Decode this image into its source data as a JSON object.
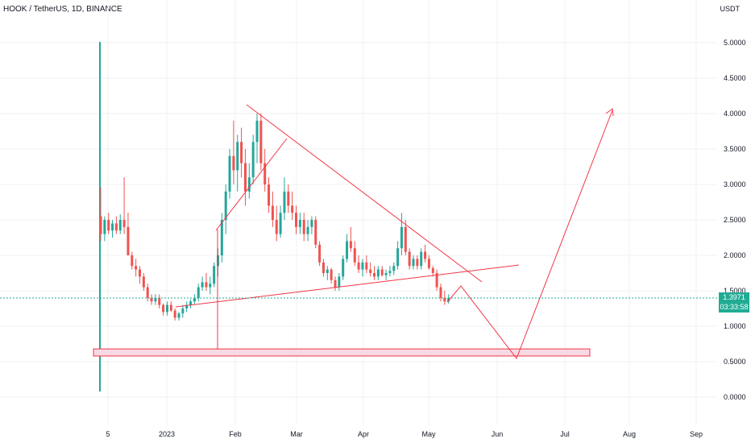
{
  "header": {
    "title": "HOOK / TetherUS, 1D, BINANCE",
    "unit": "USDT"
  },
  "price_tag": {
    "price": "1.3971",
    "countdown": "03:33:58"
  },
  "colors": {
    "up": "#26a69a",
    "down": "#ef5350",
    "drawing": "#f23645",
    "zone_fill": "#f7d9e4",
    "last_price_line": "#22ab94"
  },
  "chart_data": {
    "type": "candlestick",
    "y_axis": {
      "ticks": [
        "5.0000",
        "4.5000",
        "4.0000",
        "3.5000",
        "3.0000",
        "2.5000",
        "2.0000",
        "1.5000",
        "1.0000",
        "0.5000",
        "0.0000"
      ],
      "range": [
        0,
        5
      ]
    },
    "x_axis": {
      "ticks": [
        "5",
        "2023",
        "Feb",
        "Mar",
        "Apr",
        "May",
        "Jun",
        "Jul",
        "Aug",
        "Sep"
      ]
    },
    "grid": true,
    "last_price": 1.3971,
    "candles": [
      [
        2.55,
        2.96,
        2.2,
        2.3
      ],
      [
        2.3,
        2.55,
        2.2,
        2.5
      ],
      [
        2.5,
        2.6,
        2.3,
        2.35
      ],
      [
        2.35,
        2.5,
        2.25,
        2.45
      ],
      [
        2.45,
        2.55,
        2.3,
        2.35
      ],
      [
        2.35,
        2.58,
        2.3,
        2.5
      ],
      [
        2.5,
        3.1,
        2.3,
        2.4
      ],
      [
        2.4,
        2.6,
        2.0,
        2.0
      ],
      [
        2.0,
        2.05,
        1.8,
        1.85
      ],
      [
        1.85,
        1.95,
        1.7,
        1.8
      ],
      [
        1.8,
        1.85,
        1.6,
        1.7
      ],
      [
        1.7,
        1.75,
        1.5,
        1.55
      ],
      [
        1.55,
        1.6,
        1.35,
        1.4
      ],
      [
        1.4,
        1.45,
        1.3,
        1.35
      ],
      [
        1.35,
        1.45,
        1.3,
        1.4
      ],
      [
        1.4,
        1.45,
        1.25,
        1.3
      ],
      [
        1.3,
        1.32,
        1.15,
        1.2
      ],
      [
        1.2,
        1.35,
        1.15,
        1.3
      ],
      [
        1.3,
        1.35,
        1.2,
        1.22
      ],
      [
        1.22,
        1.25,
        1.08,
        1.12
      ],
      [
        1.12,
        1.2,
        1.08,
        1.18
      ],
      [
        1.18,
        1.3,
        1.12,
        1.25
      ],
      [
        1.25,
        1.35,
        1.2,
        1.3
      ],
      [
        1.3,
        1.38,
        1.25,
        1.35
      ],
      [
        1.35,
        1.45,
        1.3,
        1.4
      ],
      [
        1.4,
        1.6,
        1.35,
        1.55
      ],
      [
        1.55,
        1.7,
        1.5,
        1.62
      ],
      [
        1.62,
        1.75,
        1.5,
        1.55
      ],
      [
        1.55,
        1.7,
        1.45,
        1.6
      ],
      [
        1.6,
        1.9,
        1.55,
        1.85
      ],
      [
        1.85,
        2.1,
        1.7,
        2.0
      ],
      [
        2.0,
        2.6,
        1.9,
        2.5
      ],
      [
        2.5,
        3.0,
        2.3,
        2.9
      ],
      [
        2.9,
        3.5,
        2.8,
        3.4
      ],
      [
        3.4,
        3.9,
        3.0,
        3.2
      ],
      [
        3.2,
        3.7,
        2.9,
        3.6
      ],
      [
        3.6,
        3.8,
        3.1,
        3.3
      ],
      [
        3.3,
        3.5,
        2.7,
        2.9
      ],
      [
        2.9,
        3.3,
        2.8,
        3.1
      ],
      [
        3.1,
        3.7,
        3.0,
        3.6
      ],
      [
        3.6,
        4.0,
        3.3,
        3.9
      ],
      [
        3.9,
        4.0,
        3.2,
        3.3
      ],
      [
        3.3,
        3.5,
        2.9,
        3.0
      ],
      [
        3.0,
        3.1,
        2.6,
        2.7
      ],
      [
        2.7,
        2.9,
        2.4,
        2.5
      ],
      [
        2.5,
        2.7,
        2.2,
        2.3
      ],
      [
        2.3,
        2.7,
        2.25,
        2.6
      ],
      [
        2.6,
        3.1,
        2.5,
        2.9
      ],
      [
        2.9,
        3.0,
        2.6,
        2.7
      ],
      [
        2.7,
        2.9,
        2.5,
        2.6
      ],
      [
        2.6,
        2.7,
        2.3,
        2.4
      ],
      [
        2.4,
        2.6,
        2.3,
        2.5
      ],
      [
        2.5,
        2.6,
        2.2,
        2.3
      ],
      [
        2.3,
        2.5,
        2.2,
        2.4
      ],
      [
        2.4,
        2.55,
        2.3,
        2.5
      ],
      [
        2.5,
        2.55,
        2.1,
        2.15
      ],
      [
        2.15,
        2.2,
        1.85,
        1.9
      ],
      [
        1.9,
        1.95,
        1.7,
        1.75
      ],
      [
        1.75,
        1.85,
        1.65,
        1.8
      ],
      [
        1.8,
        1.82,
        1.6,
        1.65
      ],
      [
        1.65,
        1.7,
        1.5,
        1.55
      ],
      [
        1.55,
        1.75,
        1.5,
        1.7
      ],
      [
        1.7,
        2.0,
        1.65,
        1.95
      ],
      [
        1.95,
        2.3,
        1.9,
        2.2
      ],
      [
        2.2,
        2.4,
        2.05,
        2.1
      ],
      [
        2.1,
        2.2,
        1.85,
        1.9
      ],
      [
        1.9,
        2.0,
        1.75,
        1.8
      ],
      [
        1.8,
        1.95,
        1.7,
        1.9
      ],
      [
        1.9,
        2.0,
        1.75,
        1.8
      ],
      [
        1.8,
        1.9,
        1.7,
        1.75
      ],
      [
        1.75,
        1.85,
        1.65,
        1.7
      ],
      [
        1.7,
        1.85,
        1.65,
        1.8
      ],
      [
        1.8,
        1.85,
        1.7,
        1.72
      ],
      [
        1.72,
        1.8,
        1.65,
        1.75
      ],
      [
        1.75,
        1.85,
        1.7,
        1.78
      ],
      [
        1.78,
        1.9,
        1.72,
        1.85
      ],
      [
        1.85,
        2.2,
        1.8,
        2.1
      ],
      [
        2.1,
        2.6,
        2.0,
        2.4
      ],
      [
        2.4,
        2.5,
        2.0,
        2.05
      ],
      [
        2.05,
        2.1,
        1.8,
        1.85
      ],
      [
        1.85,
        2.0,
        1.8,
        1.95
      ],
      [
        1.95,
        2.0,
        1.8,
        1.85
      ],
      [
        1.85,
        2.1,
        1.8,
        2.05
      ],
      [
        2.05,
        2.15,
        1.9,
        1.95
      ],
      [
        1.95,
        2.0,
        1.8,
        1.82
      ],
      [
        1.82,
        1.85,
        1.7,
        1.75
      ],
      [
        1.75,
        1.8,
        1.5,
        1.55
      ],
      [
        1.55,
        1.6,
        1.35,
        1.4
      ],
      [
        1.4,
        1.5,
        1.3,
        1.35
      ],
      [
        1.35,
        1.45,
        1.32,
        1.4
      ]
    ],
    "annotations": [
      {
        "type": "trendline",
        "description": "descending resistance from Feb high"
      },
      {
        "type": "trendline",
        "description": "ascending support from Jan low"
      },
      {
        "type": "zone",
        "price_range": [
          0.58,
          0.68
        ]
      },
      {
        "type": "projection_path",
        "points_price": [
          1.72,
          0.55,
          4.05
        ]
      }
    ]
  }
}
